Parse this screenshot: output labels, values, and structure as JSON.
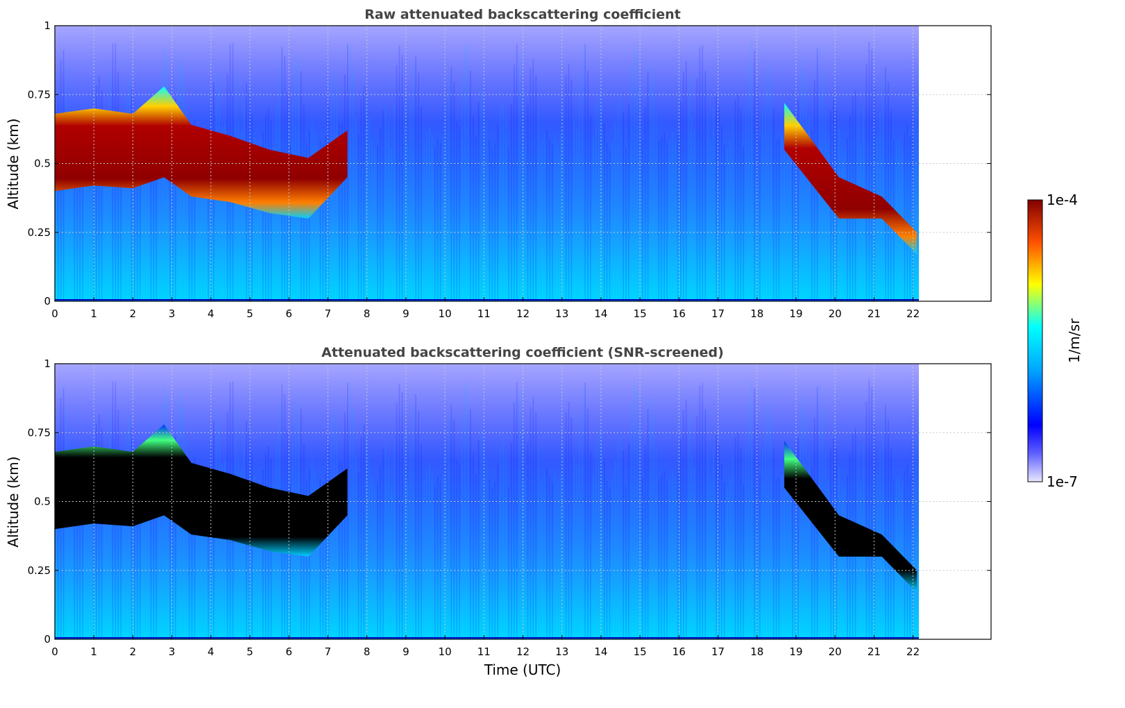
{
  "chart_data": [
    {
      "type": "heatmap",
      "title": "Raw attenuated backscattering coefficient",
      "xlabel": "",
      "ylabel": "Altitude (km)",
      "xlim": [
        0,
        24
      ],
      "ylim": [
        0,
        1
      ],
      "x_ticks": [
        "0",
        "1",
        "2",
        "3",
        "4",
        "5",
        "6",
        "7",
        "8",
        "9",
        "10",
        "11",
        "12",
        "13",
        "14",
        "15",
        "16",
        "17",
        "18",
        "19",
        "20",
        "21",
        "22"
      ],
      "y_ticks": [
        "0",
        "0.25",
        "0.5",
        "0.75",
        "1"
      ],
      "grid": true,
      "data_end_time": 22.15,
      "cloud_layer": [
        {
          "t": 0,
          "base": 0.4,
          "top": 0.68
        },
        {
          "t": 1,
          "base": 0.42,
          "top": 0.7
        },
        {
          "t": 2,
          "base": 0.41,
          "top": 0.68
        },
        {
          "t": 2.8,
          "base": 0.45,
          "top": 0.78
        },
        {
          "t": 3.5,
          "base": 0.38,
          "top": 0.64
        },
        {
          "t": 4.5,
          "base": 0.36,
          "top": 0.6
        },
        {
          "t": 5.5,
          "base": 0.32,
          "top": 0.55
        },
        {
          "t": 6.5,
          "base": 0.3,
          "top": 0.52
        },
        {
          "t": 7.5,
          "base": 0.45,
          "top": 0.62
        },
        {
          "t": 18.7,
          "base": 0.55,
          "top": 0.72
        },
        {
          "t": 20.1,
          "base": 0.3,
          "top": 0.45
        },
        {
          "t": 21.2,
          "base": 0.3,
          "top": 0.38
        },
        {
          "t": 22.1,
          "base": 0.17,
          "top": 0.25
        }
      ]
    },
    {
      "type": "heatmap",
      "title": "Attenuated backscattering coefficient (SNR-screened)",
      "xlabel": "Time (UTC)",
      "ylabel": "Altitude (km)",
      "xlim": [
        0,
        24
      ],
      "ylim": [
        0,
        1
      ],
      "x_ticks": [
        "0",
        "1",
        "2",
        "3",
        "4",
        "5",
        "6",
        "7",
        "8",
        "9",
        "10",
        "11",
        "12",
        "13",
        "14",
        "15",
        "16",
        "17",
        "18",
        "19",
        "20",
        "21",
        "22"
      ],
      "y_ticks": [
        "0",
        "0.25",
        "0.5",
        "0.75",
        "1"
      ],
      "grid": true,
      "data_end_time": 22.15,
      "screened_color": "#000000"
    }
  ],
  "colorbar": {
    "label": "1/m/sr",
    "max_label": "1e-4",
    "min_label": "1e-7",
    "scale": "log",
    "colors": [
      "#e8e8ff",
      "#0000ff",
      "#00a8ff",
      "#00ffff",
      "#ffff00",
      "#ff6000",
      "#800000"
    ]
  }
}
